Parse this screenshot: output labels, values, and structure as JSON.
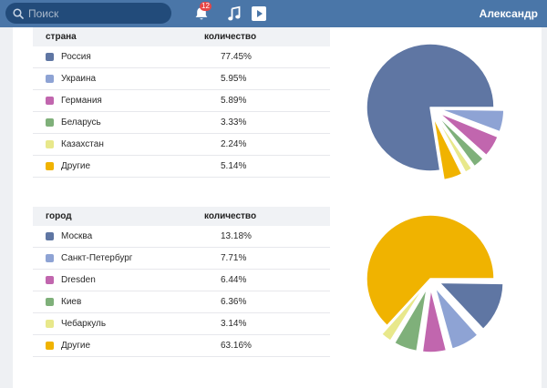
{
  "header": {
    "search_placeholder": "Поиск",
    "notifications_count": "12",
    "user_name": "Александр"
  },
  "countries": {
    "col_label": "страна",
    "col_value": "количество",
    "rows": [
      {
        "label": "Россия",
        "value": "77.45%",
        "color": "#5f76a3"
      },
      {
        "label": "Украина",
        "value": "5.95%",
        "color": "#8ea3d4"
      },
      {
        "label": "Германия",
        "value": "5.89%",
        "color": "#c166ae"
      },
      {
        "label": "Беларусь",
        "value": "3.33%",
        "color": "#7fb07a"
      },
      {
        "label": "Казахстан",
        "value": "2.24%",
        "color": "#e8e88b"
      },
      {
        "label": "Другие",
        "value": "5.14%",
        "color": "#f0b300"
      }
    ]
  },
  "cities": {
    "col_label": "город",
    "col_value": "количество",
    "rows": [
      {
        "label": "Москва",
        "value": "13.18%",
        "color": "#5f76a3"
      },
      {
        "label": "Санкт-Петербург",
        "value": "7.71%",
        "color": "#8ea3d4"
      },
      {
        "label": "Dresden",
        "value": "6.44%",
        "color": "#c166ae"
      },
      {
        "label": "Киев",
        "value": "6.36%",
        "color": "#7fb07a"
      },
      {
        "label": "Чебаркуль",
        "value": "3.14%",
        "color": "#e8e88b"
      },
      {
        "label": "Другие",
        "value": "63.16%",
        "color": "#f0b300"
      }
    ]
  },
  "chart_data": [
    {
      "type": "pie",
      "categories": [
        "Россия",
        "Украина",
        "Германия",
        "Беларусь",
        "Казахстан",
        "Другие"
      ],
      "values": [
        77.45,
        5.95,
        5.89,
        3.33,
        2.24,
        5.14
      ],
      "colors": [
        "#5f76a3",
        "#8ea3d4",
        "#c166ae",
        "#7fb07a",
        "#e8e88b",
        "#f0b300"
      ]
    },
    {
      "type": "pie",
      "categories": [
        "Москва",
        "Санкт-Петербург",
        "Dresden",
        "Киев",
        "Чебаркуль",
        "Другие"
      ],
      "values": [
        13.18,
        7.71,
        6.44,
        6.36,
        3.14,
        63.16
      ],
      "colors": [
        "#5f76a3",
        "#8ea3d4",
        "#c166ae",
        "#7fb07a",
        "#e8e88b",
        "#f0b300"
      ]
    }
  ]
}
